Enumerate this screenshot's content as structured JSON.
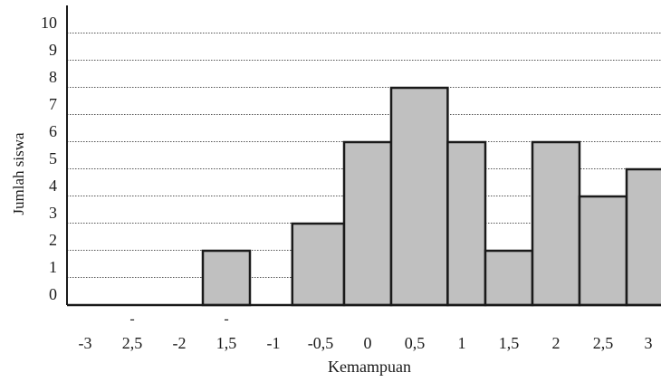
{
  "chart_data": {
    "type": "bar",
    "title": "",
    "xlabel": "Kemampuan",
    "ylabel": "Jumlah siswa",
    "ylim": [
      0,
      10
    ],
    "y_ticks": [
      "0",
      "1",
      "2",
      "3",
      "4",
      "5",
      "6",
      "7",
      "8",
      "9",
      "10"
    ],
    "x_ticks": [
      {
        "label": "-3",
        "value": -3
      },
      {
        "label": "2,5",
        "value": -2.5,
        "minus_above": "-"
      },
      {
        "label": "-2",
        "value": -2
      },
      {
        "label": "1,5",
        "value": -1.5,
        "minus_above": "-"
      },
      {
        "label": "-1",
        "value": -1
      },
      {
        "label": "-0,5",
        "value": -0.5
      },
      {
        "label": "0",
        "value": 0
      },
      {
        "label": "0,5",
        "value": 0.5
      },
      {
        "label": "1",
        "value": 1
      },
      {
        "label": "1,5",
        "value": 1.5
      },
      {
        "label": "2",
        "value": 2
      },
      {
        "label": "2,5",
        "value": 2.5
      },
      {
        "label": "3",
        "value": 3
      }
    ],
    "bars": [
      {
        "x_start": -1.75,
        "x_end": -1.25,
        "value": 2
      },
      {
        "x_start": -0.8,
        "x_end": -0.25,
        "value": 3
      },
      {
        "x_start": -0.25,
        "x_end": 0.25,
        "value": 6
      },
      {
        "x_start": 0.25,
        "x_end": 0.85,
        "value": 8
      },
      {
        "x_start": 0.85,
        "x_end": 1.25,
        "value": 6
      },
      {
        "x_start": 1.25,
        "x_end": 1.75,
        "value": 2
      },
      {
        "x_start": 1.75,
        "x_end": 2.25,
        "value": 6
      },
      {
        "x_start": 2.25,
        "x_end": 2.75,
        "value": 4
      },
      {
        "x_start": 2.75,
        "x_end": 3.2,
        "value": 5
      }
    ],
    "grid": "horizontal-dotted",
    "legend": "none",
    "colors": {
      "bar_fill": "#c0c0c0",
      "bar_stroke": "#1a1a1a",
      "grid": "#555555",
      "axis": "#1a1a1a"
    }
  }
}
